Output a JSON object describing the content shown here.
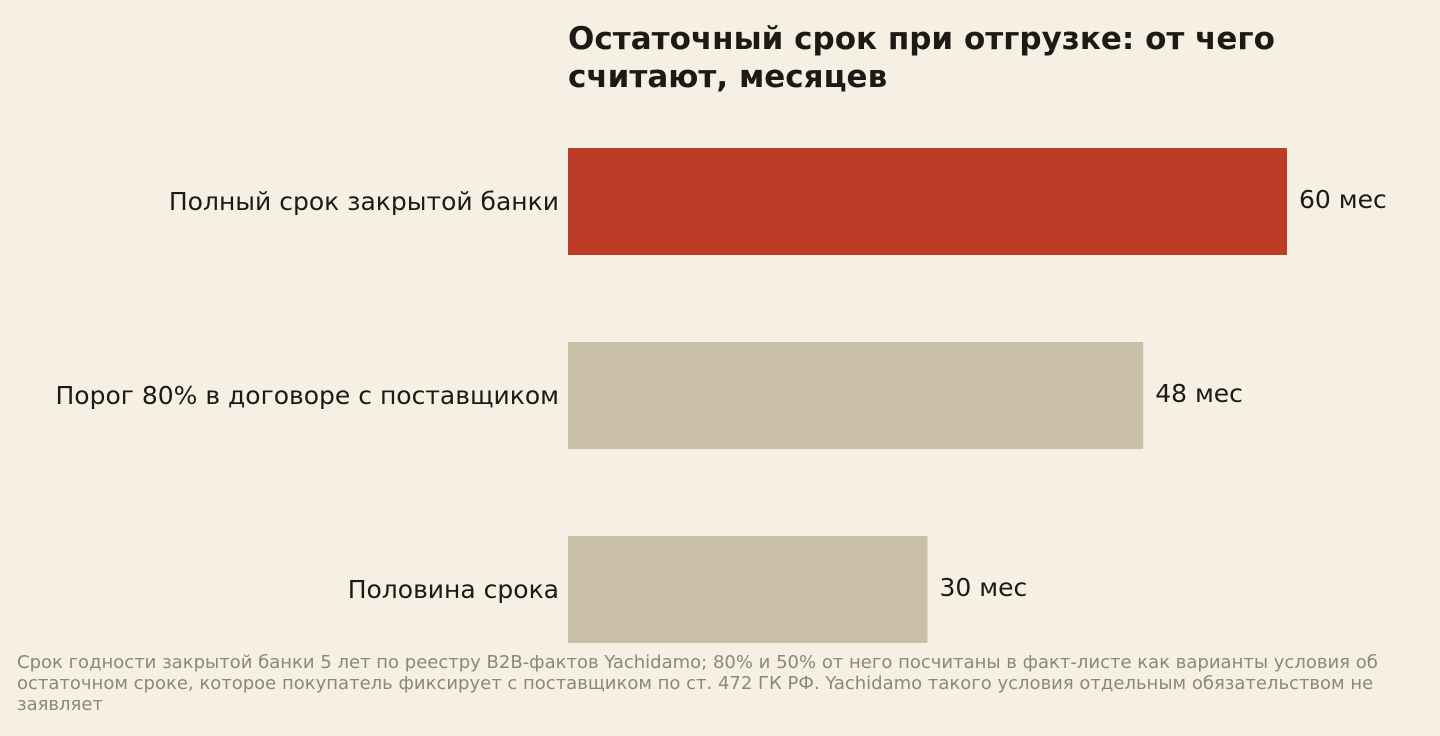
{
  "chart_data": {
    "type": "bar",
    "orientation": "horizontal",
    "title": "Остаточный срок при отгрузке: от чего считают, месяцев",
    "categories": [
      "Полный срок закрытой банки",
      "Порог 80% в договоре с поставщиком",
      "Половина срока"
    ],
    "values": [
      60,
      48,
      30
    ],
    "value_labels": [
      "60 мес",
      "48 мес",
      "30 мес"
    ],
    "colors": [
      "#bd3c27",
      "#c9bea6",
      "#c9bea6"
    ],
    "xlim": [
      0,
      60
    ],
    "grid": false,
    "legend": false
  },
  "footnote": "Срок годности закрытой банки 5 лет по реестру B2B-фактов Yachidamo; 80% и 50% от него посчитаны в факт-листе как варианты условия об остаточном сроке, которое покупатель фиксирует с поставщиком по ст. 472 ГК РФ. Yachidamo такого условия отдельным обязательством не заявляет",
  "colors": {
    "background": "#f6efe3",
    "text": "#1c1a14",
    "muted": "#8c877c",
    "accent": "#bd3c27",
    "neutral": "#c9bea6"
  }
}
